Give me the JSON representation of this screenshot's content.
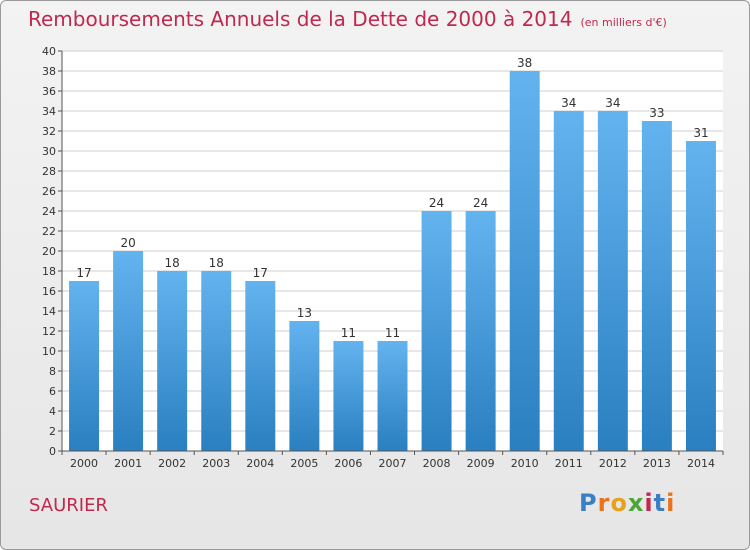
{
  "header": {
    "title": "Remboursements Annuels de la Dette de 2000 à 2014",
    "subtitle": "(en milliers d'€)"
  },
  "footer": {
    "place": "SAURIER",
    "logo_letters": [
      "P",
      "r",
      "o",
      "x",
      "i",
      "t",
      "i"
    ],
    "logo_colors": [
      "#3a7fc4",
      "#e8731a",
      "#e8a21a",
      "#4aa63a",
      "#c0294e",
      "#3a7fc4",
      "#e8731a"
    ]
  },
  "colors": {
    "bar_light": "#63b3ef",
    "bar_dark": "#2a7fc0",
    "title": "#c0294e",
    "grid": "#cfcfcf"
  },
  "chart_data": {
    "type": "bar",
    "title": "Remboursements Annuels de la Dette de 2000 à 2014",
    "subtitle": "(en milliers d'€)",
    "categories": [
      "2000",
      "2001",
      "2002",
      "2003",
      "2004",
      "2005",
      "2006",
      "2007",
      "2008",
      "2009",
      "2010",
      "2011",
      "2012",
      "2013",
      "2014"
    ],
    "values": [
      17,
      20,
      18,
      18,
      17,
      13,
      11,
      11,
      24,
      24,
      38,
      34,
      34,
      33,
      31
    ],
    "xlabel": "",
    "ylabel": "",
    "ylim": [
      0,
      40
    ],
    "yticks": [
      0,
      2,
      4,
      6,
      8,
      10,
      12,
      14,
      16,
      18,
      20,
      22,
      24,
      26,
      28,
      30,
      32,
      34,
      36,
      38,
      40
    ],
    "grid": true,
    "legend": "none"
  }
}
